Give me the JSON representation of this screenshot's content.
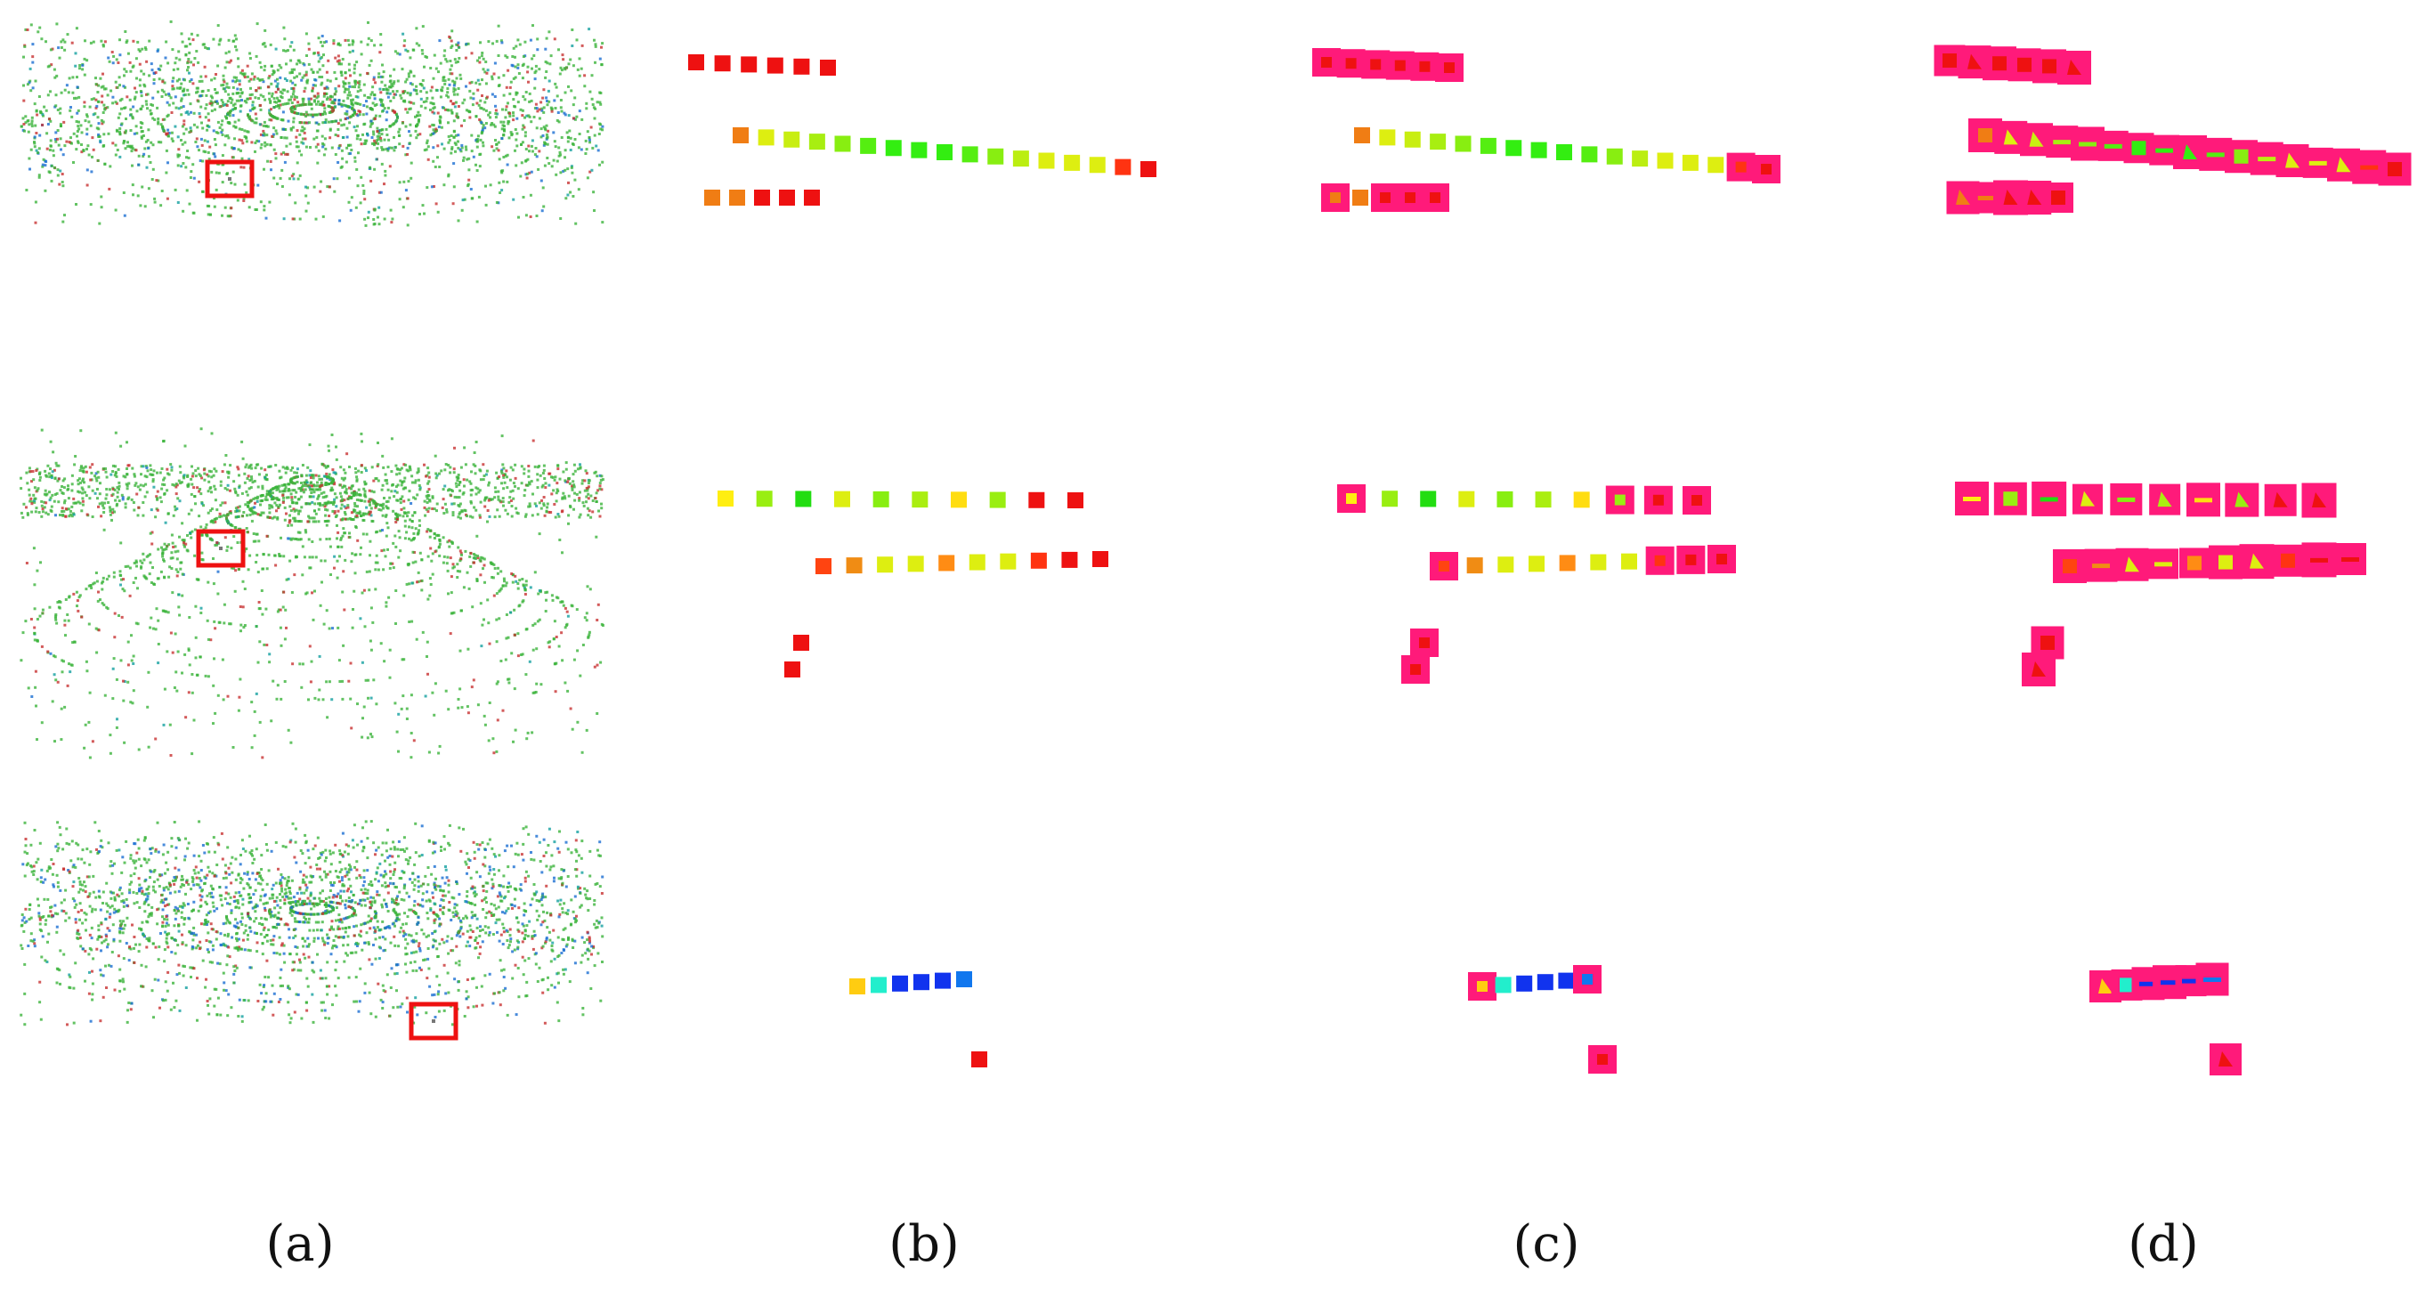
{
  "figure": {
    "panel_labels": [
      "(a)",
      "(b)",
      "(c)",
      "(d)"
    ],
    "colors": {
      "background": "#ffffff",
      "highlight_box": "#ee1111",
      "overlay_magenta": "#ff1a7a",
      "cloud_green": "#3cb43c",
      "cloud_red": "#c83232",
      "cloud_blue": "#1a6ed2",
      "cloud_teal": "#14a0a0"
    },
    "rows": [
      {
        "row": 1,
        "tracks": [
          {
            "colors": [
              "#ee1111",
              "#ee1111",
              "#ee1111",
              "#ee1111",
              "#ee1111",
              "#ee1111"
            ]
          },
          {
            "colors": [
              "#f07d14",
              "#ddee11",
              "#c8ee11",
              "#a8ee11",
              "#88ee11",
              "#55ee11",
              "#33ee11",
              "#33ee11",
              "#33ee11",
              "#55ee11",
              "#88ee11",
              "#bbee11",
              "#ddee11",
              "#ddee11",
              "#ddee11",
              "#ff3311",
              "#ee1111"
            ]
          },
          {
            "colors": [
              "#f07d14",
              "#f07d14",
              "#ee1111",
              "#ee1111",
              "#ee1111"
            ]
          }
        ]
      },
      {
        "row": 2,
        "tracks": [
          {
            "colors": [
              "#ffee11",
              "#99ee11",
              "#22dd11",
              "#ddee11",
              "#88ee11",
              "#aaee11",
              "#ffdd11",
              "#99ee11",
              "#ee1111",
              "#ee1111"
            ]
          },
          {
            "colors": [
              "#ff4411",
              "#f08c14",
              "#ddee11",
              "#ddee11",
              "#ff8c14",
              "#ddee11",
              "#ddee11",
              "#ff3311",
              "#ee1111",
              "#ee1111"
            ]
          },
          {
            "colors": [
              "#ee1111",
              "#ee1111"
            ]
          }
        ]
      },
      {
        "row": 3,
        "tracks": [
          {
            "colors": [
              "#ffcc11",
              "#22eecc",
              "#1133ee",
              "#1133ee",
              "#1133ee",
              "#1177ee"
            ]
          },
          {
            "colors": [
              "#ee1111"
            ]
          }
        ]
      }
    ]
  }
}
